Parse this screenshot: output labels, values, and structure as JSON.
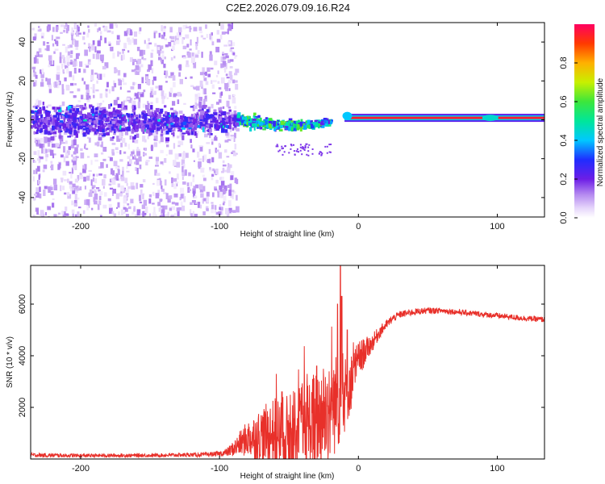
{
  "figure_title": "C2E2.2026.079.09.16.R24",
  "colors": {
    "snr_line": "#e8302a",
    "spectrogram_low": "#c9a8f0",
    "spectrogram_band": "#5a10e0"
  },
  "colorbar": {
    "label": "Normalized spectral amplitude",
    "ticks": [
      "0.0",
      "0.2",
      "0.4",
      "0.6",
      "0.8"
    ],
    "tick_values": [
      0.0,
      0.2,
      0.4,
      0.6,
      0.8
    ],
    "range": [
      0,
      1
    ],
    "colormap": "rainbow"
  },
  "chart_data": [
    {
      "type": "heatmap",
      "name": "spectrogram",
      "xlabel": "Height of straight line (km)",
      "ylabel": "Frequency (Hz)",
      "xlim": [
        -236,
        134
      ],
      "ylim": [
        -50,
        50
      ],
      "xticks": [
        -200,
        -100,
        0,
        100
      ],
      "xtick_labels": [
        "-200",
        "-100",
        "0",
        "100"
      ],
      "yticks": [
        -40,
        -20,
        0,
        20,
        40
      ],
      "ytick_labels": [
        "-40",
        "-20",
        "0",
        "20",
        "40"
      ],
      "band_center_hz": [
        [
          -236,
          0
        ],
        [
          -200,
          0
        ],
        [
          -150,
          0
        ],
        [
          -100,
          0
        ],
        [
          -90,
          0.5
        ],
        [
          -80,
          0
        ],
        [
          -70,
          -1
        ],
        [
          -60,
          -2
        ],
        [
          -50,
          -2
        ],
        [
          -40,
          -2
        ],
        [
          -30,
          -1
        ],
        [
          -20,
          0
        ],
        [
          -10,
          1
        ],
        [
          0,
          1
        ],
        [
          50,
          1
        ],
        [
          100,
          1
        ],
        [
          134,
          1
        ]
      ],
      "band_halfwidth_hz": [
        [
          -236,
          8
        ],
        [
          -150,
          8
        ],
        [
          -100,
          7
        ],
        [
          -90,
          4
        ],
        [
          -60,
          3
        ],
        [
          -30,
          2
        ],
        [
          -20,
          1
        ],
        [
          0,
          1
        ],
        [
          134,
          1
        ]
      ],
      "features": [
        {
          "label": "broadband noise",
          "x_range": [
            -236,
            -88
          ],
          "y_range": [
            -50,
            50
          ],
          "amplitude": 0.05
        },
        {
          "label": "main band",
          "x_range": [
            -236,
            -88
          ],
          "y_range": [
            -8,
            8
          ],
          "amplitude": 0.15
        },
        {
          "label": "scattered dots",
          "x_range": [
            -88,
            -20
          ],
          "y_range": [
            -4,
            6
          ],
          "amplitude": 0.45
        },
        {
          "label": "carrier line",
          "x_range": [
            -10,
            134
          ],
          "y_range": [
            0,
            1.5
          ],
          "amplitude": 0.95
        }
      ]
    },
    {
      "type": "line",
      "name": "snr",
      "xlabel": "Height of straight line (km)",
      "ylabel": "SNR (10 * v/v)",
      "xlim": [
        -236,
        134
      ],
      "ylim": [
        0,
        7500
      ],
      "xticks": [
        -200,
        -100,
        0,
        100
      ],
      "xtick_labels": [
        "-200",
        "-100",
        "0",
        "100"
      ],
      "yticks": [
        2000,
        4000,
        6000
      ],
      "ytick_labels": [
        "2000",
        "4000",
        "6000"
      ],
      "series": [
        {
          "name": "SNR",
          "x": [
            -236,
            -200,
            -150,
            -110,
            -100,
            -95,
            -90,
            -85,
            -80,
            -75,
            -70,
            -60,
            -50,
            -40,
            -30,
            -25,
            -20,
            -15,
            -10,
            -5,
            0,
            5,
            10,
            15,
            20,
            25,
            30,
            40,
            50,
            60,
            70,
            80,
            90,
            100,
            110,
            120,
            134
          ],
          "mean": [
            150,
            130,
            140,
            170,
            200,
            250,
            400,
            600,
            800,
            850,
            900,
            1000,
            900,
            1200,
            1500,
            1800,
            2000,
            2200,
            2500,
            3000,
            3800,
            4200,
            4500,
            4900,
            5200,
            5450,
            5600,
            5700,
            5750,
            5750,
            5700,
            5650,
            5600,
            5550,
            5500,
            5450,
            5400
          ],
          "noise_amp": [
            80,
            70,
            70,
            80,
            100,
            150,
            300,
            500,
            700,
            900,
            1100,
            1400,
            1600,
            1800,
            2000,
            2100,
            2100,
            1900,
            1500,
            1100,
            800,
            500,
            350,
            250,
            180,
            150,
            140,
            130,
            120,
            110,
            110,
            110,
            110,
            110,
            110,
            110,
            110
          ],
          "spikes": [
            {
              "x": -15,
              "y": 6000
            },
            {
              "x": -13,
              "y": 7500
            },
            {
              "x": -12,
              "y": 6300
            },
            {
              "x": -8,
              "y": 5000
            },
            {
              "x": -30,
              "y": 3600
            },
            {
              "x": -55,
              "y": 2600
            }
          ]
        }
      ]
    }
  ]
}
